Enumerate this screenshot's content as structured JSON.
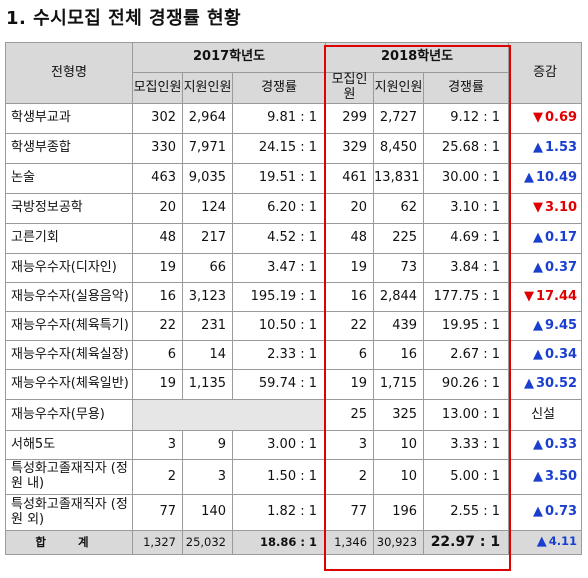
{
  "title": "1. 수시모집 전체 경쟁률 현황",
  "headers": {
    "type": "전형명",
    "year2017": "2017학년도",
    "year2018": "2018학년도",
    "recruit": "모집인원",
    "apply": "지원인원",
    "apply2018": "지원인원",
    "ratio": "경쟁률",
    "change": "증감"
  },
  "rows": [
    {
      "name": "학생부교과",
      "r17": "302",
      "a17": "2,964",
      "c17": "9.81 : 1",
      "r18": "299",
      "a18": "2,727",
      "c18": "9.12 : 1",
      "dir": "down",
      "chg": "0.69"
    },
    {
      "name": "학생부종합",
      "r17": "330",
      "a17": "7,971",
      "c17": "24.15 : 1",
      "r18": "329",
      "a18": "8,450",
      "c18": "25.68 : 1",
      "dir": "up",
      "chg": "1.53"
    },
    {
      "name": "논술",
      "r17": "463",
      "a17": "9,035",
      "c17": "19.51 : 1",
      "r18": "461",
      "a18": "13,831",
      "c18": "30.00 : 1",
      "dir": "up",
      "chg": "10.49"
    },
    {
      "name": "국방정보공학",
      "r17": "20",
      "a17": "124",
      "c17": "6.20 : 1",
      "r18": "20",
      "a18": "62",
      "c18": "3.10 : 1",
      "dir": "down",
      "chg": "3.10"
    },
    {
      "name": "고른기회",
      "r17": "48",
      "a17": "217",
      "c17": "4.52 : 1",
      "r18": "48",
      "a18": "225",
      "c18": "4.69 : 1",
      "dir": "up",
      "chg": "0.17"
    },
    {
      "name": "재능우수자(디자인)",
      "r17": "19",
      "a17": "66",
      "c17": "3.47 : 1",
      "r18": "19",
      "a18": "73",
      "c18": "3.84 : 1",
      "dir": "up",
      "chg": "0.37"
    },
    {
      "name": "재능우수자(실용음악)",
      "r17": "16",
      "a17": "3,123",
      "c17": "195.19 : 1",
      "r18": "16",
      "a18": "2,844",
      "c18": "177.75 : 1",
      "dir": "down",
      "chg": "17.44"
    },
    {
      "name": "재능우수자(체육특기)",
      "r17": "22",
      "a17": "231",
      "c17": "10.50 : 1",
      "r18": "22",
      "a18": "439",
      "c18": "19.95 : 1",
      "dir": "up",
      "chg": "9.45"
    },
    {
      "name": "재능우수자(체육실장)",
      "r17": "6",
      "a17": "14",
      "c17": "2.33 : 1",
      "r18": "6",
      "a18": "16",
      "c18": "2.67 : 1",
      "dir": "up",
      "chg": "0.34"
    },
    {
      "name": "재능우수자(체육일반)",
      "r17": "19",
      "a17": "1,135",
      "c17": "59.74 : 1",
      "r18": "19",
      "a18": "1,715",
      "c18": "90.26 : 1",
      "dir": "up",
      "chg": "30.52"
    },
    {
      "name": "재능우수자(무용)",
      "r17": "",
      "a17": "",
      "c17": "",
      "r18": "25",
      "a18": "325",
      "c18": "13.00 : 1",
      "dir": "new",
      "chg": "신설"
    },
    {
      "name": "서해5도",
      "r17": "3",
      "a17": "9",
      "c17": "3.00 : 1",
      "r18": "3",
      "a18": "10",
      "c18": "3.33 : 1",
      "dir": "up",
      "chg": "0.33"
    },
    {
      "name": "특성화고졸재직자 (정원 내)",
      "r17": "2",
      "a17": "3",
      "c17": "1.50 : 1",
      "r18": "2",
      "a18": "10",
      "c18": "5.00 : 1",
      "dir": "up",
      "chg": "3.50"
    },
    {
      "name": "특성화고졸재직자 (정원 외)",
      "r17": "77",
      "a17": "140",
      "c17": "1.82 : 1",
      "r18": "77",
      "a18": "196",
      "c18": "2.55 : 1",
      "dir": "up",
      "chg": "0.73"
    }
  ],
  "total": {
    "label": "합 계",
    "r17": "1,327",
    "a17": "25,032",
    "c17": "18.86 : 1",
    "r18": "1,346",
    "a18": "30,923",
    "c18": "22.97 : 1",
    "dir": "up",
    "chg": "4.11"
  },
  "colors": {
    "up": "#1a3fcf",
    "down": "#e00000",
    "header_bg": "#d9d9d9",
    "highlight_box": "#e00000"
  }
}
